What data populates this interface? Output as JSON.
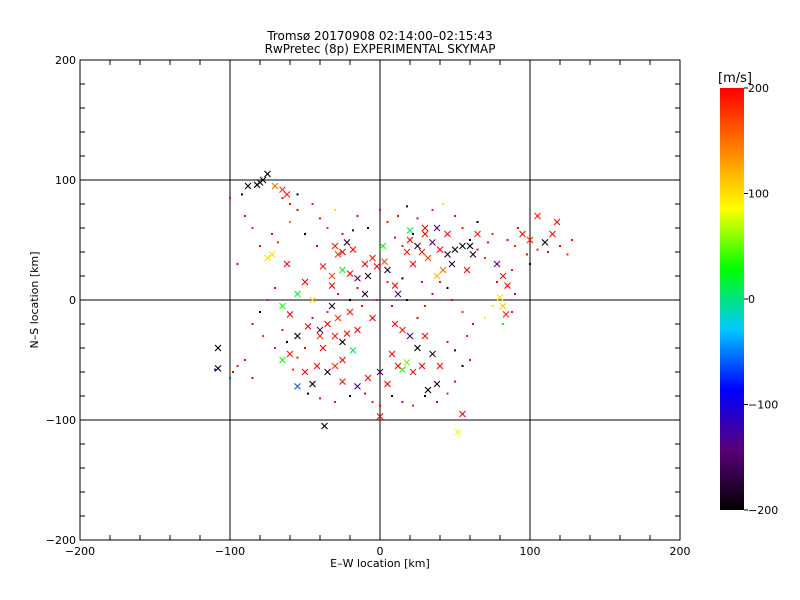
{
  "chart_data": {
    "type": "scatter",
    "title": "Tromsø 20170908 02:14:00–02:15:43",
    "subtitle": "RwPretec (8p) EXPERIMENTAL SKYMAP",
    "xlabel": "E–W location [km]",
    "ylabel": "N–S location [km]",
    "xlim": [
      -200,
      200
    ],
    "ylim": [
      -200,
      200
    ],
    "x_ticks": [
      -200,
      -100,
      0,
      100,
      200
    ],
    "y_ticks": [
      -200,
      -100,
      0,
      100,
      200
    ],
    "grid": true,
    "colorbar": {
      "label": "[m/s]",
      "range": [
        -200,
        200
      ],
      "ticks": [
        200,
        100,
        0,
        -100,
        -200
      ],
      "colors": [
        "#000000",
        "#5a007a",
        "#0000ff",
        "#00c8ff",
        "#00ff00",
        "#ffff00",
        "#ff8000",
        "#ff0000"
      ]
    },
    "series": [
      {
        "marker": "x",
        "points": [
          [
            -75,
            105,
            -200
          ],
          [
            -78,
            100,
            -200
          ],
          [
            -82,
            96,
            -200
          ],
          [
            -88,
            95,
            -200
          ],
          [
            -80,
            98,
            -190
          ],
          [
            -70,
            95,
            150
          ],
          [
            -65,
            92,
            180
          ],
          [
            -62,
            88,
            190
          ],
          [
            -108,
            -40,
            -200
          ],
          [
            -108,
            -57,
            -200
          ],
          [
            -72,
            38,
            100
          ],
          [
            -75,
            35,
            100
          ],
          [
            -62,
            30,
            200
          ],
          [
            -30,
            45,
            190
          ],
          [
            -25,
            40,
            200
          ],
          [
            -22,
            48,
            -180
          ],
          [
            -28,
            38,
            180
          ],
          [
            -18,
            42,
            200
          ],
          [
            -25,
            25,
            20
          ],
          [
            -20,
            22,
            200
          ],
          [
            -32,
            20,
            170
          ],
          [
            -15,
            18,
            -150
          ],
          [
            -10,
            30,
            200
          ],
          [
            -5,
            35,
            190
          ],
          [
            -2,
            28,
            200
          ],
          [
            -8,
            20,
            -180
          ],
          [
            5,
            25,
            -190
          ],
          [
            3,
            32,
            170
          ],
          [
            20,
            50,
            200
          ],
          [
            25,
            45,
            -180
          ],
          [
            30,
            55,
            200
          ],
          [
            28,
            40,
            190
          ],
          [
            35,
            48,
            -150
          ],
          [
            40,
            42,
            200
          ],
          [
            32,
            35,
            170
          ],
          [
            45,
            38,
            -180
          ],
          [
            50,
            42,
            -200
          ],
          [
            55,
            45,
            -190
          ],
          [
            48,
            30,
            -170
          ],
          [
            42,
            25,
            150
          ],
          [
            38,
            20,
            120
          ],
          [
            22,
            30,
            200
          ],
          [
            18,
            40,
            190
          ],
          [
            30,
            60,
            200
          ],
          [
            38,
            60,
            -120
          ],
          [
            20,
            58,
            10
          ],
          [
            45,
            55,
            200
          ],
          [
            -40,
            -25,
            -150
          ],
          [
            -35,
            -20,
            200
          ],
          [
            -30,
            -30,
            190
          ],
          [
            -25,
            -35,
            -200
          ],
          [
            -22,
            -28,
            200
          ],
          [
            -28,
            -15,
            180
          ],
          [
            -38,
            -40,
            200
          ],
          [
            -42,
            -55,
            200
          ],
          [
            -35,
            -60,
            -190
          ],
          [
            -30,
            -55,
            180
          ],
          [
            -25,
            -50,
            200
          ],
          [
            -18,
            -42,
            10
          ],
          [
            -15,
            -25,
            200
          ],
          [
            -20,
            -10,
            190
          ],
          [
            -32,
            -5,
            -180
          ],
          [
            10,
            -20,
            200
          ],
          [
            15,
            -25,
            190
          ],
          [
            20,
            -30,
            -150
          ],
          [
            8,
            -45,
            200
          ],
          [
            12,
            -55,
            200
          ],
          [
            15,
            -58,
            30
          ],
          [
            18,
            -52,
            50
          ],
          [
            22,
            -60,
            190
          ],
          [
            28,
            -55,
            200
          ],
          [
            25,
            -40,
            -200
          ],
          [
            30,
            -30,
            200
          ],
          [
            35,
            -45,
            -180
          ],
          [
            40,
            -55,
            200
          ],
          [
            38,
            -70,
            -190
          ],
          [
            32,
            -75,
            -200
          ],
          [
            5,
            -70,
            200
          ],
          [
            0,
            -60,
            -150
          ],
          [
            -8,
            -65,
            200
          ],
          [
            -15,
            -72,
            -120
          ],
          [
            -25,
            -68,
            190
          ],
          [
            -45,
            -70,
            -200
          ],
          [
            -50,
            -60,
            200
          ],
          [
            -55,
            -72,
            -60
          ],
          [
            -60,
            -45,
            190
          ],
          [
            -65,
            -50,
            30
          ],
          [
            -55,
            -30,
            -200
          ],
          [
            -48,
            -22,
            200
          ],
          [
            -65,
            -5,
            30
          ],
          [
            -60,
            -12,
            200
          ],
          [
            -40,
            -30,
            180
          ],
          [
            78,
            30,
            -140
          ],
          [
            82,
            20,
            190
          ],
          [
            85,
            12,
            200
          ],
          [
            80,
            2,
            100
          ],
          [
            82,
            -5,
            110
          ],
          [
            84,
            -12,
            190
          ],
          [
            95,
            55,
            200
          ],
          [
            100,
            50,
            190
          ],
          [
            110,
            48,
            -200
          ],
          [
            115,
            55,
            200
          ],
          [
            118,
            65,
            200
          ],
          [
            105,
            70,
            190
          ],
          [
            55,
            -95,
            200
          ],
          [
            52,
            -110,
            80
          ],
          [
            -37,
            -105,
            -200
          ],
          [
            0,
            -97,
            200
          ],
          [
            -50,
            15,
            200
          ],
          [
            -55,
            5,
            20
          ],
          [
            -45,
            0,
            100
          ],
          [
            -10,
            5,
            -180
          ],
          [
            -5,
            -15,
            200
          ],
          [
            -32,
            12,
            200
          ],
          [
            -38,
            28,
            190
          ],
          [
            10,
            12,
            200
          ],
          [
            12,
            5,
            -150
          ],
          [
            2,
            45,
            30
          ],
          [
            60,
            45,
            -200
          ],
          [
            62,
            38,
            -180
          ],
          [
            58,
            25,
            200
          ],
          [
            65,
            55,
            190
          ]
        ]
      },
      {
        "marker": "dot",
        "points": [
          [
            -90,
            70,
            200
          ],
          [
            -85,
            60,
            180
          ],
          [
            -72,
            55,
            200
          ],
          [
            -68,
            48,
            190
          ],
          [
            -80,
            45,
            200
          ],
          [
            -95,
            30,
            200
          ],
          [
            -60,
            65,
            150
          ],
          [
            -55,
            75,
            200
          ],
          [
            -45,
            80,
            190
          ],
          [
            -40,
            68,
            200
          ],
          [
            -35,
            60,
            180
          ],
          [
            -50,
            55,
            -200
          ],
          [
            -42,
            45,
            200
          ],
          [
            -15,
            70,
            200
          ],
          [
            -8,
            60,
            -190
          ],
          [
            0,
            75,
            200
          ],
          [
            5,
            65,
            190
          ],
          [
            12,
            70,
            200
          ],
          [
            18,
            78,
            -180
          ],
          [
            25,
            68,
            200
          ],
          [
            35,
            75,
            190
          ],
          [
            42,
            80,
            100
          ],
          [
            50,
            70,
            200
          ],
          [
            55,
            60,
            190
          ],
          [
            60,
            50,
            -200
          ],
          [
            65,
            42,
            200
          ],
          [
            70,
            35,
            180
          ],
          [
            72,
            48,
            200
          ],
          [
            75,
            55,
            190
          ],
          [
            85,
            50,
            200
          ],
          [
            90,
            45,
            180
          ],
          [
            98,
            38,
            200
          ],
          [
            105,
            42,
            190
          ],
          [
            112,
            40,
            200
          ],
          [
            120,
            45,
            200
          ],
          [
            125,
            38,
            190
          ],
          [
            128,
            50,
            200
          ],
          [
            100,
            30,
            -200
          ],
          [
            92,
            60,
            200
          ],
          [
            -70,
            10,
            200
          ],
          [
            -75,
            0,
            190
          ],
          [
            -80,
            -10,
            -200
          ],
          [
            -85,
            -20,
            200
          ],
          [
            -78,
            -30,
            180
          ],
          [
            -90,
            -50,
            200
          ],
          [
            -95,
            -55,
            190
          ],
          [
            -98,
            -60,
            200
          ],
          [
            -100,
            -65,
            -60
          ],
          [
            -85,
            -65,
            200
          ],
          [
            -70,
            -40,
            190
          ],
          [
            -65,
            -25,
            200
          ],
          [
            -58,
            -58,
            180
          ],
          [
            -48,
            -78,
            -200
          ],
          [
            -40,
            -82,
            200
          ],
          [
            -30,
            -85,
            190
          ],
          [
            -20,
            -80,
            -200
          ],
          [
            -10,
            -78,
            200
          ],
          [
            -5,
            -85,
            190
          ],
          [
            0,
            -88,
            200
          ],
          [
            8,
            -80,
            -180
          ],
          [
            15,
            -85,
            200
          ],
          [
            22,
            -88,
            190
          ],
          [
            30,
            -80,
            -200
          ],
          [
            38,
            -85,
            200
          ],
          [
            45,
            -78,
            190
          ],
          [
            50,
            -68,
            200
          ],
          [
            55,
            -55,
            -200
          ],
          [
            60,
            -50,
            200
          ],
          [
            58,
            -30,
            190
          ],
          [
            62,
            -20,
            200
          ],
          [
            55,
            -10,
            180
          ],
          [
            48,
            0,
            200
          ],
          [
            45,
            10,
            -200
          ],
          [
            35,
            5,
            200
          ],
          [
            30,
            -5,
            190
          ],
          [
            25,
            -15,
            200
          ],
          [
            18,
            0,
            -180
          ],
          [
            8,
            -5,
            200
          ],
          [
            -2,
            0,
            190
          ],
          [
            -12,
            -5,
            200
          ],
          [
            -20,
            0,
            -200
          ],
          [
            -28,
            5,
            200
          ],
          [
            -35,
            -10,
            190
          ],
          [
            -45,
            -15,
            200
          ],
          [
            -15,
            10,
            200
          ],
          [
            5,
            15,
            190
          ],
          [
            15,
            18,
            -200
          ],
          [
            28,
            15,
            200
          ],
          [
            40,
            15,
            190
          ],
          [
            -25,
            55,
            200
          ],
          [
            -18,
            58,
            -180
          ],
          [
            10,
            52,
            200
          ],
          [
            15,
            45,
            190
          ],
          [
            22,
            55,
            -200
          ],
          [
            78,
            15,
            200
          ],
          [
            88,
            25,
            190
          ],
          [
            90,
            5,
            200
          ],
          [
            75,
            -5,
            100
          ],
          [
            88,
            -10,
            200
          ],
          [
            -60,
            80,
            200
          ],
          [
            -65,
            85,
            190
          ],
          [
            -55,
            88,
            -200
          ],
          [
            -100,
            85,
            200
          ],
          [
            -92,
            88,
            -200
          ],
          [
            45,
            -35,
            200
          ],
          [
            50,
            -42,
            -180
          ],
          [
            -50,
            -40,
            200
          ],
          [
            -55,
            -48,
            190
          ],
          [
            -62,
            -35,
            -200
          ],
          [
            -110,
            -58,
            -80
          ],
          [
            -30,
            75,
            100
          ],
          [
            65,
            65,
            -200
          ],
          [
            70,
            -15,
            80
          ],
          [
            82,
            -20,
            30
          ]
        ]
      }
    ]
  }
}
